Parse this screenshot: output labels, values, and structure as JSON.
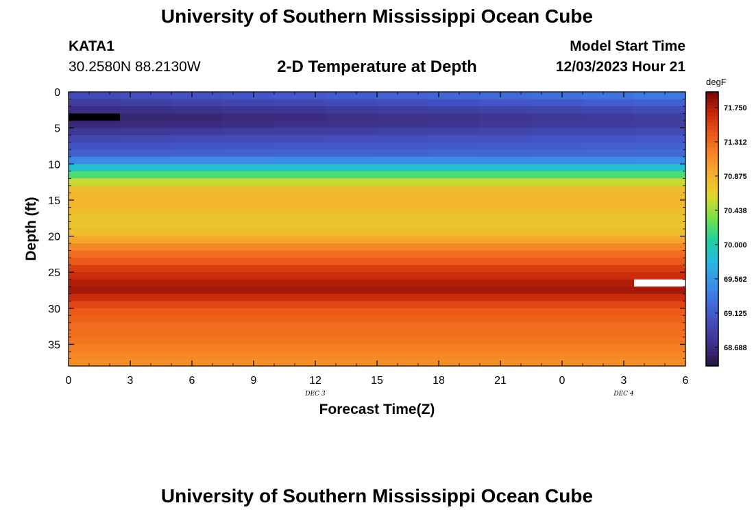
{
  "header": {
    "title": "University of Southern Mississippi Ocean Cube",
    "station_id": "KATA1",
    "location": "30.2580N  88.2130W",
    "plot_title": "2-D Temperature at Depth",
    "model_start_label": "Model Start Time",
    "model_start_value": "12/03/2023 Hour 21"
  },
  "footer": {
    "title": "University of Southern Mississippi Ocean Cube"
  },
  "chart_data": {
    "type": "heatmap",
    "title": "2-D Temperature at Depth",
    "xlabel": "Forecast Time(Z)",
    "ylabel": "Depth (ft)",
    "x_ticks": [
      "0",
      "3",
      "6",
      "9",
      "12",
      "15",
      "18",
      "21",
      "0",
      "3",
      "6"
    ],
    "x_date_labels": [
      {
        "label": "DEC 3",
        "at_tick": 4
      },
      {
        "label": "DEC 4",
        "at_tick": 9
      }
    ],
    "xlim": [
      0,
      30
    ],
    "y_ticks": [
      0,
      5,
      10,
      15,
      20,
      25,
      30,
      35
    ],
    "ylim": [
      0,
      38
    ],
    "y_inverted": true,
    "colorbar": {
      "unit": "degF",
      "tick_labels": [
        "71.750",
        "71.312",
        "70.875",
        "70.438",
        "70.000",
        "69.562",
        "69.125",
        "68.688"
      ],
      "range": [
        68.45,
        71.95
      ]
    },
    "time_columns": 12,
    "depth_bins_ft": 38,
    "depth_profile_degF": [
      68.98,
      68.85,
      68.7,
      68.6,
      68.65,
      68.8,
      68.95,
      69.05,
      69.15,
      69.45,
      69.85,
      70.2,
      70.55,
      70.8,
      70.85,
      70.85,
      70.8,
      70.75,
      70.75,
      70.8,
      70.95,
      71.15,
      71.3,
      71.4,
      71.55,
      71.65,
      71.75,
      71.8,
      71.65,
      71.5,
      71.4,
      71.35,
      71.3,
      71.3,
      71.25,
      71.2,
      71.15,
      71.1
    ],
    "upper_layer_warming_degF_total": 0.35,
    "missing_cells": [
      {
        "time_column": 0,
        "depth_ft": 3,
        "color": "#000000"
      },
      {
        "time_column": 11,
        "depth_ft": 26,
        "color": "#ffffff"
      }
    ]
  }
}
